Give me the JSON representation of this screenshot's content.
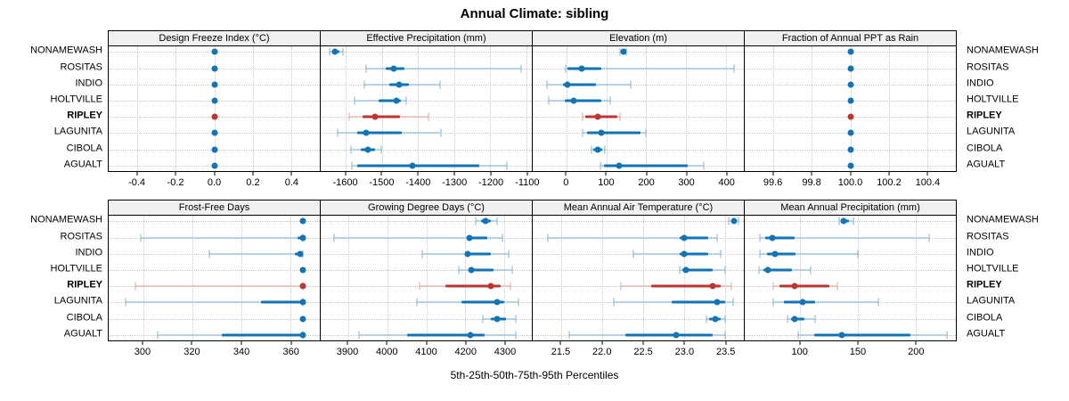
{
  "title": "Annual Climate: sibling",
  "footer": "5th-25th-50th-75th-95th Percentiles",
  "sites": [
    {
      "label": "NONAMEWASH",
      "highlight": false
    },
    {
      "label": "ROSITAS",
      "highlight": false
    },
    {
      "label": "INDIO",
      "highlight": false
    },
    {
      "label": "HOLTVILLE",
      "highlight": false
    },
    {
      "label": "RIPLEY",
      "highlight": true
    },
    {
      "label": "LAGUNITA",
      "highlight": false
    },
    {
      "label": "CIBOLA",
      "highlight": false
    },
    {
      "label": "AGUALT",
      "highlight": false
    }
  ],
  "colors": {
    "accent_blue": "#1274b4",
    "accent_blue_light": "#7fb2d6",
    "accent_red": "#bd3430",
    "accent_red_light": "#dfa09b",
    "header_bg": "#f0f0f0",
    "grid": "#c9c9c9",
    "border": "#000000"
  },
  "chart_data": {
    "type": "dotplot",
    "statistic": "percentiles [5th, 25th, 50th, 75th, 95th]",
    "highlighted_series": "RIPLEY",
    "site_order_top_to_bottom": [
      "NONAMEWASH",
      "ROSITAS",
      "INDIO",
      "HOLTVILLE",
      "RIPLEY",
      "LAGUNITA",
      "CIBOLA",
      "AGUALT"
    ],
    "panels": [
      {
        "row": 0,
        "title": "Design Freeze Index (°C)",
        "xlim": [
          -0.55,
          0.55
        ],
        "ticks": [
          -0.4,
          -0.2,
          0.0,
          0.2,
          0.4
        ],
        "tick_labels": [
          "-0.4",
          "-0.2",
          "0.0",
          "0.2",
          "0.4"
        ],
        "percentiles": [
          [
            0,
            0,
            0,
            0,
            0
          ],
          [
            0,
            0,
            0,
            0,
            0
          ],
          [
            0,
            0,
            0,
            0,
            0
          ],
          [
            0,
            0,
            0,
            0,
            0
          ],
          [
            0,
            0,
            0,
            0,
            0
          ],
          [
            0,
            0,
            0,
            0,
            0
          ],
          [
            0,
            0,
            0,
            0,
            0
          ],
          [
            0,
            0,
            0,
            0,
            0
          ]
        ]
      },
      {
        "row": 0,
        "title": "Effective Precipitation (mm)",
        "xlim": [
          -1670,
          -1085
        ],
        "ticks": [
          -1600,
          -1500,
          -1400,
          -1300,
          -1200,
          -1100
        ],
        "tick_labels": [
          "-1600",
          "-1500",
          "-1400",
          "-1300",
          "-1200",
          "-1100"
        ],
        "percentiles": [
          [
            -1645,
            -1637,
            -1630,
            -1618,
            -1608
          ],
          [
            -1545,
            -1490,
            -1467,
            -1438,
            -1115
          ],
          [
            -1548,
            -1480,
            -1452,
            -1425,
            -1340
          ],
          [
            -1577,
            -1510,
            -1460,
            -1448,
            -1432
          ],
          [
            -1590,
            -1555,
            -1520,
            -1450,
            -1372
          ],
          [
            -1622,
            -1570,
            -1545,
            -1445,
            -1338
          ],
          [
            -1585,
            -1560,
            -1540,
            -1520,
            -1503
          ],
          [
            -1583,
            -1570,
            -1415,
            -1230,
            -1153
          ]
        ]
      },
      {
        "row": 0,
        "title": "Elevation (m)",
        "xlim": [
          -85,
          445
        ],
        "ticks": [
          0,
          100,
          200,
          300,
          400
        ],
        "tick_labels": [
          "0",
          "100",
          "200",
          "300",
          "400"
        ],
        "percentiles": [
          [
            135,
            140,
            143,
            147,
            150
          ],
          [
            -2,
            2,
            38,
            88,
            420
          ],
          [
            -49,
            -8,
            2,
            73,
            162
          ],
          [
            -44,
            -5,
            18,
            88,
            110
          ],
          [
            40,
            48,
            78,
            128,
            135
          ],
          [
            40,
            52,
            88,
            185,
            200
          ],
          [
            62,
            68,
            78,
            90,
            96
          ],
          [
            84,
            95,
            133,
            305,
            345
          ]
        ]
      },
      {
        "row": 0,
        "title": "Fraction of Annual PPT as Rain",
        "xlim": [
          99.45,
          100.55
        ],
        "ticks": [
          99.6,
          99.8,
          100.0,
          100.2,
          100.4
        ],
        "tick_labels": [
          "99.6",
          "99.8",
          "100.0",
          "100.2",
          "100.4"
        ],
        "percentiles": [
          [
            100,
            100,
            100,
            100,
            100
          ],
          [
            100,
            100,
            100,
            100,
            100
          ],
          [
            100,
            100,
            100,
            100,
            100
          ],
          [
            100,
            100,
            100,
            100,
            100
          ],
          [
            100,
            100,
            100,
            100,
            100
          ],
          [
            100,
            100,
            100,
            100,
            100
          ],
          [
            100,
            100,
            100,
            100,
            100
          ],
          [
            100,
            100,
            100,
            100,
            100
          ]
        ]
      },
      {
        "row": 1,
        "title": "Frost-Free Days",
        "xlim": [
          286,
          372
        ],
        "ticks": [
          300,
          320,
          340,
          360
        ],
        "tick_labels": [
          "300",
          "320",
          "340",
          "360"
        ],
        "percentiles": [
          [
            365,
            365,
            365,
            365,
            365
          ],
          [
            299,
            363,
            365,
            365,
            365
          ],
          [
            327,
            362,
            364,
            365,
            365
          ],
          [
            365,
            365,
            365,
            365,
            365
          ],
          [
            297,
            364,
            365,
            365,
            365
          ],
          [
            293,
            348,
            365,
            365,
            365
          ],
          [
            365,
            365,
            365,
            365,
            365
          ],
          [
            306,
            332,
            365,
            365,
            365
          ]
        ]
      },
      {
        "row": 1,
        "title": "Growing Degree Days (°C)",
        "xlim": [
          3830,
          4370
        ],
        "ticks": [
          3900,
          4000,
          4100,
          4200,
          4300
        ],
        "tick_labels": [
          "3900",
          "4000",
          "4100",
          "4200",
          "4300"
        ],
        "percentiles": [
          [
            4227,
            4240,
            4252,
            4265,
            4282
          ],
          [
            3864,
            4205,
            4210,
            4255,
            4295
          ],
          [
            4089,
            4200,
            4207,
            4266,
            4310
          ],
          [
            4184,
            4210,
            4216,
            4272,
            4320
          ],
          [
            4084,
            4150,
            4265,
            4290,
            4315
          ],
          [
            4075,
            4190,
            4280,
            4300,
            4335
          ],
          [
            4245,
            4265,
            4280,
            4305,
            4330
          ],
          [
            3927,
            4052,
            4212,
            4250,
            4330
          ]
        ]
      },
      {
        "row": 1,
        "title": "Mean Annual Air Temperature (°C)",
        "xlim": [
          21.15,
          23.73
        ],
        "ticks": [
          21.5,
          22.0,
          22.5,
          23.0,
          23.5
        ],
        "tick_labels": [
          "21.5",
          "22.0",
          "22.5",
          "23.0",
          "23.5"
        ],
        "percentiles": [
          [
            23.55,
            23.58,
            23.61,
            23.64,
            23.67
          ],
          [
            21.33,
            22.95,
            23.0,
            23.3,
            23.4
          ],
          [
            22.38,
            22.95,
            23.0,
            23.3,
            23.45
          ],
          [
            22.95,
            22.98,
            23.02,
            23.35,
            23.5
          ],
          [
            22.23,
            22.6,
            23.35,
            23.45,
            23.58
          ],
          [
            22.14,
            22.85,
            23.4,
            23.5,
            23.6
          ],
          [
            23.27,
            23.31,
            23.38,
            23.45,
            23.5
          ],
          [
            21.6,
            22.28,
            22.9,
            23.35,
            23.5
          ]
        ]
      },
      {
        "row": 1,
        "title": "Mean Annual Precipitation (mm)",
        "xlim": [
          52,
          235
        ],
        "ticks": [
          100,
          150,
          200
        ],
        "tick_labels": [
          "100",
          "150",
          "200"
        ],
        "percentiles": [
          [
            134,
            136,
            138,
            142,
            146
          ],
          [
            65,
            70,
            76,
            95,
            212
          ],
          [
            65,
            71,
            78,
            96,
            150
          ],
          [
            64,
            68,
            72,
            93,
            109
          ],
          [
            77,
            82,
            95,
            125,
            132
          ],
          [
            77,
            86,
            102,
            113,
            168
          ],
          [
            89,
            92,
            95,
            104,
            113
          ],
          [
            98,
            112,
            136,
            196,
            227
          ]
        ]
      }
    ]
  }
}
